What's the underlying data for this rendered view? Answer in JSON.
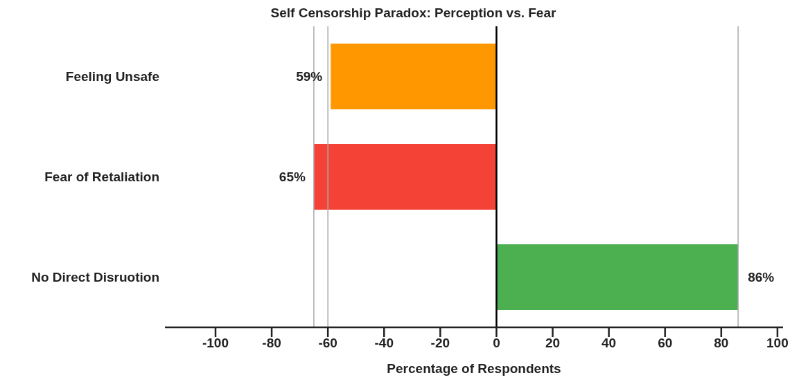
{
  "chart_data": {
    "type": "bar",
    "orientation": "horizontal",
    "title": "Self Censorship Paradox: Perception vs. Fear",
    "xlabel": "Percentage of Respondents",
    "categories": [
      "Feeling Unsafe",
      "Fear of Retaliation",
      "No Direct Disruotion"
    ],
    "values": [
      59,
      65,
      86
    ],
    "base": [
      -59,
      -65,
      0
    ],
    "colors": [
      "#ff9800",
      "#f44336",
      "#4caf50"
    ],
    "value_labels": [
      "59%",
      "65%",
      "86%"
    ],
    "xlim": [
      -118,
      102
    ],
    "xticks": [
      -100,
      -80,
      -60,
      -40,
      -20,
      0,
      20,
      40,
      60,
      80,
      100
    ],
    "grid": false,
    "ref_lines": [
      {
        "axis": "x",
        "value": 0,
        "color": "#000000"
      },
      {
        "axis": "x",
        "value": -65,
        "color": "#aaaaaa"
      },
      {
        "axis": "x",
        "value": -60,
        "color": "#aaaaaa"
      },
      {
        "axis": "x",
        "value": 86,
        "color": "#aaaaaa"
      }
    ]
  }
}
